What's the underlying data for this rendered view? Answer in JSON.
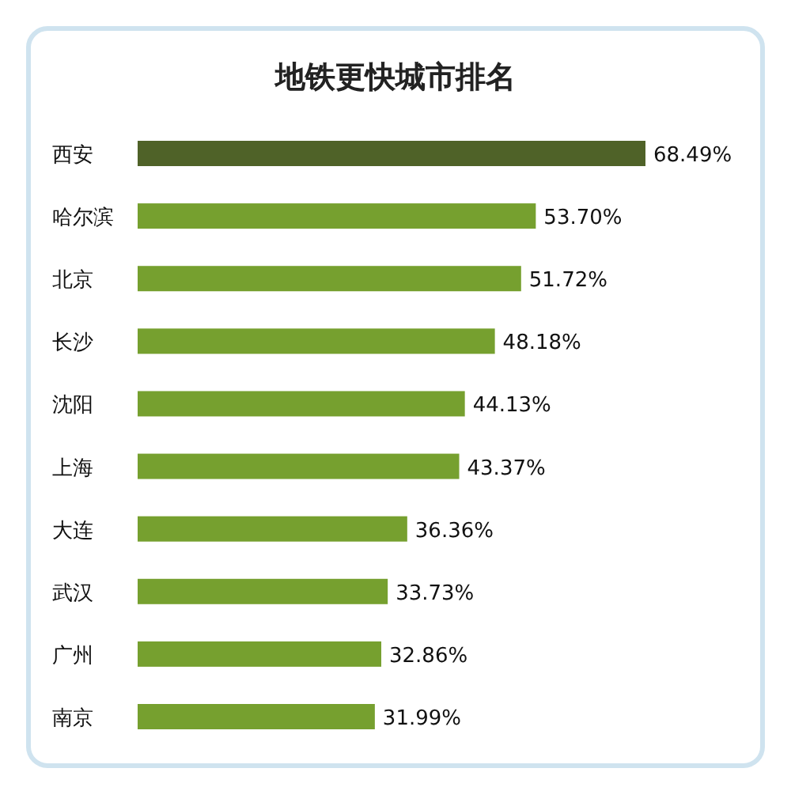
{
  "chart_data": {
    "type": "bar",
    "orientation": "horizontal",
    "title": "地铁更快城市排名",
    "categories": [
      "西安",
      "哈尔滨",
      "北京",
      "长沙",
      "沈阳",
      "上海",
      "大连",
      "武汉",
      "广州",
      "南京"
    ],
    "values": [
      68.49,
      53.7,
      51.72,
      48.18,
      44.13,
      43.37,
      36.36,
      33.73,
      32.86,
      31.99
    ],
    "value_labels": [
      "68.49%",
      "53.70%",
      "51.72%",
      "48.18%",
      "44.13%",
      "43.37%",
      "36.36%",
      "33.73%",
      "32.86%",
      "31.99%"
    ],
    "colors": [
      "#4f6228",
      "#76a02f",
      "#76a02f",
      "#76a02f",
      "#76a02f",
      "#76a02f",
      "#76a02f",
      "#76a02f",
      "#76a02f",
      "#76a02f"
    ]
  }
}
